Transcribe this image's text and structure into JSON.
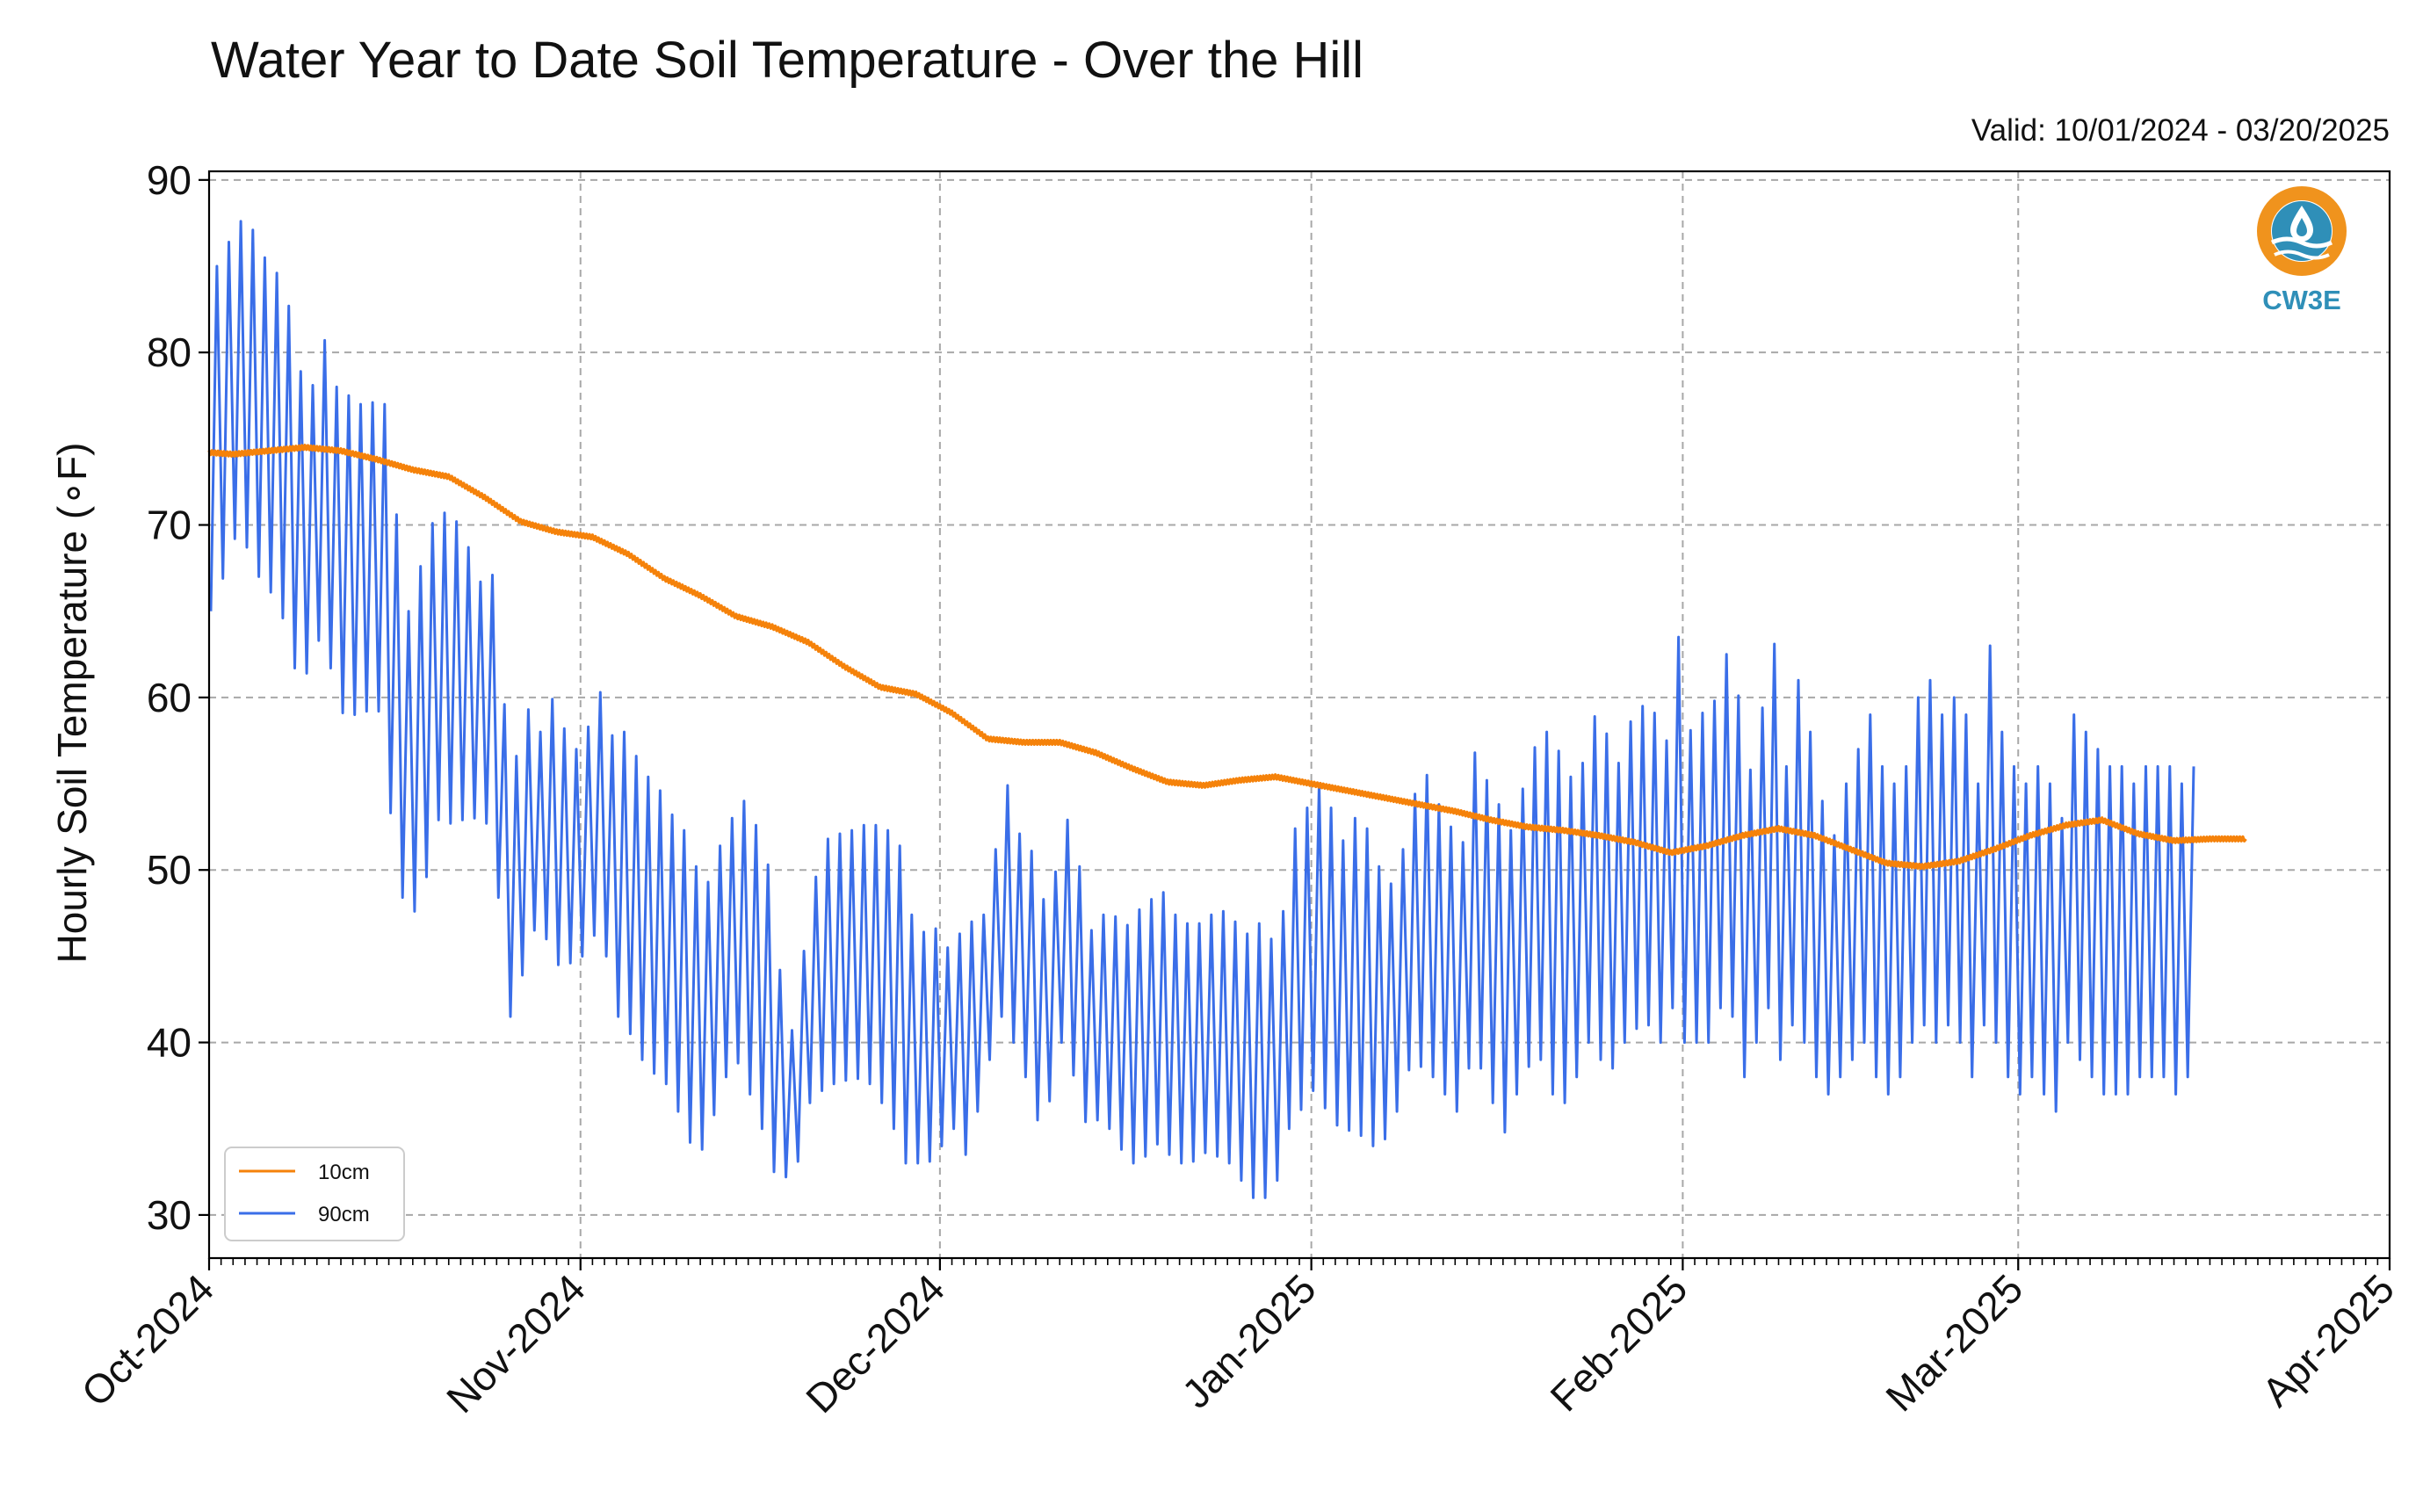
{
  "chart_data": {
    "type": "line",
    "title": "Water Year to Date Soil Temperature - Over the Hill",
    "subtitle": "Valid: 10/01/2024 - 03/20/2025",
    "xlabel": "",
    "ylabel": "Hourly Soil Temperature (∘F)",
    "xlim": [
      "2024-10-01",
      "2025-04-01"
    ],
    "ylim": [
      27.5,
      90.5
    ],
    "yticks": [
      30,
      40,
      50,
      60,
      70,
      80,
      90
    ],
    "xticks": [
      {
        "date": "2024-10-01",
        "label": "Oct-2024"
      },
      {
        "date": "2024-11-01",
        "label": "Nov-2024"
      },
      {
        "date": "2024-12-01",
        "label": "Dec-2024"
      },
      {
        "date": "2025-01-01",
        "label": "Jan-2025"
      },
      {
        "date": "2025-02-01",
        "label": "Feb-2025"
      },
      {
        "date": "2025-03-01",
        "label": "Mar-2025"
      },
      {
        "date": "2025-04-01",
        "label": "Apr-2025"
      }
    ],
    "grid": true,
    "legend_position": "bottom-left",
    "series": [
      {
        "name": "10cm",
        "color": "#f5820a",
        "x": [
          "2024-10-01",
          "2024-10-03",
          "2024-10-06",
          "2024-10-09",
          "2024-10-12",
          "2024-10-15",
          "2024-10-18",
          "2024-10-21",
          "2024-10-24",
          "2024-10-27",
          "2024-10-30",
          "2024-11-02",
          "2024-11-05",
          "2024-11-08",
          "2024-11-11",
          "2024-11-14",
          "2024-11-17",
          "2024-11-20",
          "2024-11-23",
          "2024-11-26",
          "2024-11-29",
          "2024-12-02",
          "2024-12-05",
          "2024-12-08",
          "2024-12-11",
          "2024-12-14",
          "2024-12-17",
          "2024-12-20",
          "2024-12-23",
          "2024-12-26",
          "2024-12-29",
          "2025-01-01",
          "2025-01-04",
          "2025-01-07",
          "2025-01-10",
          "2025-01-13",
          "2025-01-16",
          "2025-01-19",
          "2025-01-22",
          "2025-01-25",
          "2025-01-28",
          "2025-01-31",
          "2025-02-03",
          "2025-02-06",
          "2025-02-09",
          "2025-02-12",
          "2025-02-15",
          "2025-02-18",
          "2025-02-21",
          "2025-02-24",
          "2025-02-27",
          "2025-03-02",
          "2025-03-05",
          "2025-03-08",
          "2025-03-11",
          "2025-03-14",
          "2025-03-17",
          "2025-03-20"
        ],
        "y": [
          74.2,
          74.1,
          74.3,
          74.5,
          74.3,
          73.8,
          73.2,
          72.8,
          71.6,
          70.2,
          69.6,
          69.3,
          68.3,
          66.9,
          65.9,
          64.7,
          64.1,
          63.2,
          61.8,
          60.6,
          60.2,
          59.1,
          57.6,
          57.4,
          57.4,
          56.8,
          55.9,
          55.1,
          54.9,
          55.2,
          55.4,
          55.0,
          54.6,
          54.2,
          53.8,
          53.4,
          52.9,
          52.5,
          52.3,
          52.0,
          51.6,
          51.0,
          51.4,
          52.0,
          52.4,
          52.0,
          51.2,
          50.4,
          50.2,
          50.5,
          51.2,
          52.0,
          52.6,
          52.9,
          52.1,
          51.7,
          51.8,
          51.8
        ]
      },
      {
        "name": "90cm",
        "color": "#3a6ee8",
        "x": [
          "2024-10-01",
          "2024-10-02",
          "2024-10-03",
          "2024-10-04",
          "2024-10-05",
          "2024-10-06",
          "2024-10-07",
          "2024-10-08",
          "2024-10-09",
          "2024-10-10",
          "2024-10-11",
          "2024-10-12",
          "2024-10-13",
          "2024-10-14",
          "2024-10-15",
          "2024-10-16",
          "2024-10-17",
          "2024-10-18",
          "2024-10-19",
          "2024-10-20",
          "2024-10-21",
          "2024-10-22",
          "2024-10-23",
          "2024-10-24",
          "2024-10-25",
          "2024-10-26",
          "2024-10-27",
          "2024-10-28",
          "2024-10-29",
          "2024-10-30",
          "2024-10-31",
          "2024-11-01",
          "2024-11-02",
          "2024-11-03",
          "2024-11-04",
          "2024-11-05",
          "2024-11-06",
          "2024-11-07",
          "2024-11-08",
          "2024-11-09",
          "2024-11-10",
          "2024-11-11",
          "2024-11-12",
          "2024-11-13",
          "2024-11-14",
          "2024-11-15",
          "2024-11-16",
          "2024-11-17",
          "2024-11-18",
          "2024-11-19",
          "2024-11-20",
          "2024-11-21",
          "2024-11-22",
          "2024-11-23",
          "2024-11-24",
          "2024-11-25",
          "2024-11-26",
          "2024-11-27",
          "2024-11-28",
          "2024-11-29",
          "2024-11-30",
          "2024-12-01",
          "2024-12-02",
          "2024-12-03",
          "2024-12-04",
          "2024-12-05",
          "2024-12-06",
          "2024-12-07",
          "2024-12-08",
          "2024-12-09",
          "2024-12-10",
          "2024-12-11",
          "2024-12-12",
          "2024-12-13",
          "2024-12-14",
          "2024-12-15",
          "2024-12-16",
          "2024-12-17",
          "2024-12-18",
          "2024-12-19",
          "2024-12-20",
          "2024-12-21",
          "2024-12-22",
          "2024-12-23",
          "2024-12-24",
          "2024-12-25",
          "2024-12-26",
          "2024-12-27",
          "2024-12-28",
          "2024-12-29",
          "2024-12-30",
          "2024-12-31",
          "2025-01-01",
          "2025-01-02",
          "2025-01-03",
          "2025-01-04",
          "2025-01-05",
          "2025-01-06",
          "2025-01-07",
          "2025-01-08",
          "2025-01-09",
          "2025-01-10",
          "2025-01-11",
          "2025-01-12",
          "2025-01-13",
          "2025-01-14",
          "2025-01-15",
          "2025-01-16",
          "2025-01-17",
          "2025-01-18",
          "2025-01-19",
          "2025-01-20",
          "2025-01-21",
          "2025-01-22",
          "2025-01-23",
          "2025-01-24",
          "2025-01-25",
          "2025-01-26",
          "2025-01-27",
          "2025-01-28",
          "2025-01-29",
          "2025-01-30",
          "2025-01-31",
          "2025-02-01",
          "2025-02-02",
          "2025-02-03",
          "2025-02-04",
          "2025-02-05",
          "2025-02-06",
          "2025-02-07",
          "2025-02-08",
          "2025-02-09",
          "2025-02-10",
          "2025-02-11",
          "2025-02-12",
          "2025-02-13",
          "2025-02-14",
          "2025-02-15",
          "2025-02-16",
          "2025-02-17",
          "2025-02-18",
          "2025-02-19",
          "2025-02-20",
          "2025-02-21",
          "2025-02-22",
          "2025-02-23",
          "2025-02-24",
          "2025-02-25",
          "2025-02-26",
          "2025-02-27",
          "2025-02-28",
          "2025-03-01",
          "2025-03-02",
          "2025-03-03",
          "2025-03-04",
          "2025-03-05",
          "2025-03-06",
          "2025-03-07",
          "2025-03-08",
          "2025-03-09",
          "2025-03-10",
          "2025-03-11",
          "2025-03-12",
          "2025-03-13",
          "2025-03-14",
          "2025-03-15",
          "2025-03-16",
          "2025-03-17",
          "2025-03-18",
          "2025-03-19",
          "2025-03-20"
        ],
        "max": [
          85.0,
          86.4,
          87.6,
          87.1,
          85.5,
          84.6,
          82.7,
          78.9,
          78.1,
          80.7,
          78.0,
          77.5,
          77.0,
          77.1,
          77.0,
          70.6,
          65.0,
          67.6,
          70.1,
          70.7,
          70.2,
          68.7,
          66.7,
          67.1,
          59.6,
          56.6,
          59.3,
          58.0,
          59.9,
          58.2,
          57.0,
          58.3,
          60.3,
          57.8,
          58.0,
          56.6,
          55.4,
          54.6,
          53.2,
          52.3,
          50.2,
          49.3,
          51.4,
          53.0,
          54.0,
          52.6,
          50.3,
          44.2,
          40.7,
          45.3,
          49.6,
          51.8,
          52.1,
          52.3,
          52.6,
          52.6,
          52.3,
          51.4,
          47.4,
          46.4,
          46.6,
          45.5,
          46.3,
          47.0,
          47.4,
          51.2,
          54.9,
          52.1,
          51.1,
          48.3,
          49.9,
          52.9,
          50.2,
          46.5,
          47.4,
          47.3,
          46.8,
          47.7,
          48.3,
          48.7,
          47.4,
          46.9,
          46.9,
          47.4,
          47.6,
          47.0,
          46.3,
          46.9,
          46.0,
          47.6,
          52.4,
          53.6,
          55.0,
          53.6,
          51.7,
          53.0,
          52.4,
          50.2,
          49.2,
          51.2,
          54.4,
          55.5,
          53.8,
          52.5,
          51.6,
          56.8,
          55.2,
          53.8,
          52.3,
          54.7,
          57.1,
          58.0,
          56.9,
          55.4,
          56.2,
          58.9,
          57.9,
          56.2,
          58.6,
          59.5,
          59.1,
          57.5,
          63.5,
          58.1,
          59.1,
          59.8,
          62.5,
          60.1,
          55.8,
          59.4,
          63.1,
          56.0,
          61.0,
          58.0,
          54.0,
          52.0,
          55.0,
          57.0,
          59.0,
          56.0,
          55.0,
          56.0,
          60.0,
          61.0,
          59.0,
          60.0,
          59.0,
          55.0,
          63.0,
          58.0,
          56.0,
          55.0,
          56.0,
          55.0,
          53.0,
          59.0,
          58.0,
          57.0,
          56.0,
          56.0,
          55.0,
          56.0,
          56.0,
          56.0,
          55.0,
          56.0
        ],
        "min": [
          65.0,
          66.9,
          69.2,
          68.7,
          67.0,
          66.1,
          64.6,
          61.7,
          61.4,
          63.3,
          61.7,
          59.1,
          59.0,
          59.2,
          59.2,
          53.3,
          48.4,
          47.6,
          49.6,
          52.9,
          52.7,
          52.9,
          53.0,
          52.7,
          48.4,
          41.5,
          43.9,
          46.5,
          46.0,
          44.5,
          44.6,
          45.0,
          46.2,
          45.0,
          41.5,
          40.5,
          39.0,
          38.2,
          37.6,
          36.0,
          34.2,
          33.8,
          35.8,
          38.0,
          38.8,
          37.0,
          35.0,
          32.5,
          32.2,
          33.1,
          36.5,
          37.2,
          37.6,
          37.8,
          37.9,
          37.6,
          36.5,
          35.0,
          33.0,
          33.0,
          33.1,
          34.0,
          35.0,
          33.5,
          36.0,
          39.0,
          41.5,
          40.0,
          38.0,
          35.5,
          36.6,
          40.0,
          38.1,
          35.4,
          35.5,
          35.0,
          33.8,
          33.0,
          33.4,
          34.1,
          33.5,
          33.0,
          33.1,
          33.6,
          33.4,
          33.0,
          32.0,
          31.0,
          31.0,
          32.0,
          35.0,
          36.1,
          37.2,
          36.2,
          35.2,
          34.9,
          34.6,
          34.0,
          34.4,
          36.0,
          38.4,
          38.6,
          38.0,
          37.0,
          36.0,
          38.5,
          38.5,
          36.5,
          34.8,
          37.0,
          38.6,
          39.0,
          37.0,
          36.5,
          38.0,
          40.0,
          39.0,
          38.5,
          40.0,
          40.8,
          41.0,
          40.0,
          42.0,
          40.0,
          40.0,
          40.0,
          42.0,
          41.5,
          38.0,
          40.0,
          42.0,
          39.0,
          41.0,
          40.0,
          38.0,
          37.0,
          38.0,
          39.0,
          40.0,
          38.0,
          37.0,
          38.0,
          40.0,
          41.0,
          40.0,
          41.0,
          40.0,
          38.0,
          41.0,
          40.0,
          38.0,
          37.0,
          38.0,
          37.0,
          36.0,
          40.0,
          39.0,
          38.0,
          37.0,
          37.0,
          37.0,
          38.0,
          38.0,
          38.0,
          37.0,
          38.0
        ]
      }
    ]
  },
  "logo": {
    "text": "CW3E",
    "icon": "water-drop-icon",
    "ring_color": "#f0931d",
    "wave_color": "#2f8fb8",
    "text_color": "#2f8fb8"
  },
  "style": {
    "grid_color": "#a8a8a8",
    "axis_color": "#000000"
  }
}
